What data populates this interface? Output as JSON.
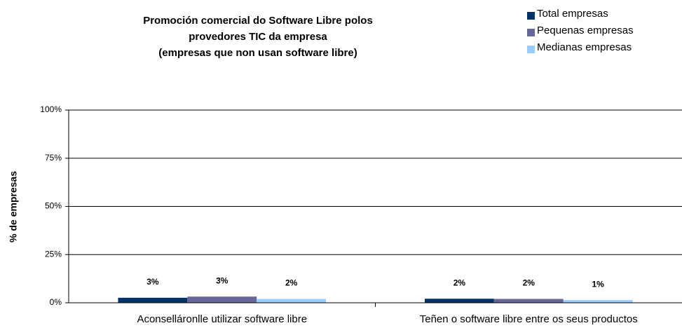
{
  "chart_data": {
    "type": "bar",
    "title": [
      "Promoción comercial do Software Libre polos",
      "provedores TIC da empresa",
      "(empresas que non usan software libre)"
    ],
    "y_label": "% de empresas",
    "categories": [
      "Aconselláronlle utilizar software libre",
      "Teñen o software libre entre os seus productos"
    ],
    "series": [
      {
        "name": "Total empresas",
        "color": "#003366",
        "values": [
          2.6,
          2.1
        ],
        "value_labels": [
          "3%",
          "2%"
        ]
      },
      {
        "name": "Pequenas empresas",
        "color": "#666699",
        "values": [
          3.2,
          2.0
        ],
        "value_labels": [
          "3%",
          "2%"
        ]
      },
      {
        "name": "Medianas empresas",
        "color": "#99ccff",
        "values": [
          2.0,
          1.4
        ],
        "value_labels": [
          "2%",
          "1%"
        ]
      }
    ],
    "ylim": [
      0,
      100
    ],
    "yticks": [
      {
        "value": 0,
        "label": "0%"
      },
      {
        "value": 25,
        "label": "25%"
      },
      {
        "value": 50,
        "label": "50%"
      },
      {
        "value": 75,
        "label": "75%"
      },
      {
        "value": 100,
        "label": "100%"
      }
    ],
    "grid": true,
    "legend": "top-right"
  }
}
